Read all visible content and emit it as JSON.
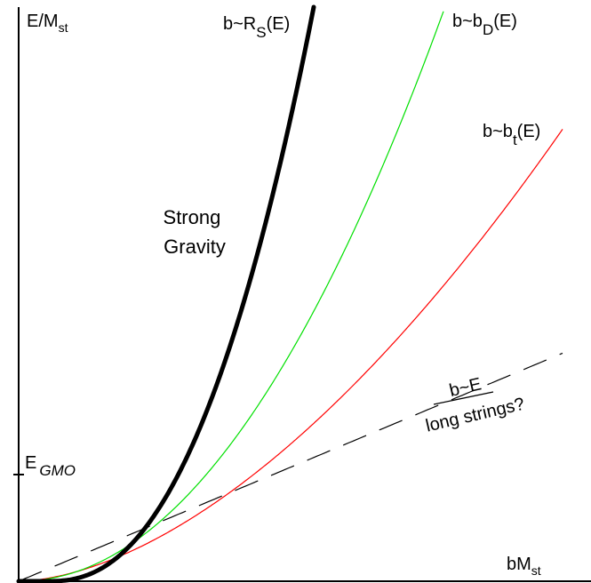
{
  "axes": {
    "y_label": {
      "main": "E/M",
      "sub": "st"
    },
    "x_label": {
      "main": "bM",
      "sub": "st"
    },
    "tick_label": {
      "main": "E",
      "sub": "GMO"
    }
  },
  "curves": {
    "schwarzschild": {
      "label_main": "b~R",
      "label_sub": "S",
      "label_tail": "(E)",
      "color": "#000000"
    },
    "diffusion": {
      "label_main": "b~b",
      "label_sub": "D",
      "label_tail": "(E)",
      "color": "#00e000"
    },
    "tidal": {
      "label_main": "b~b",
      "label_sub": "t",
      "label_tail": "(E)",
      "color": "#ff0000"
    },
    "linear": {
      "label_line1": "b~E",
      "label_line2": "long strings?",
      "color": "#000000"
    }
  },
  "region_label": {
    "line1": "Strong",
    "line2": "Gravity"
  }
}
